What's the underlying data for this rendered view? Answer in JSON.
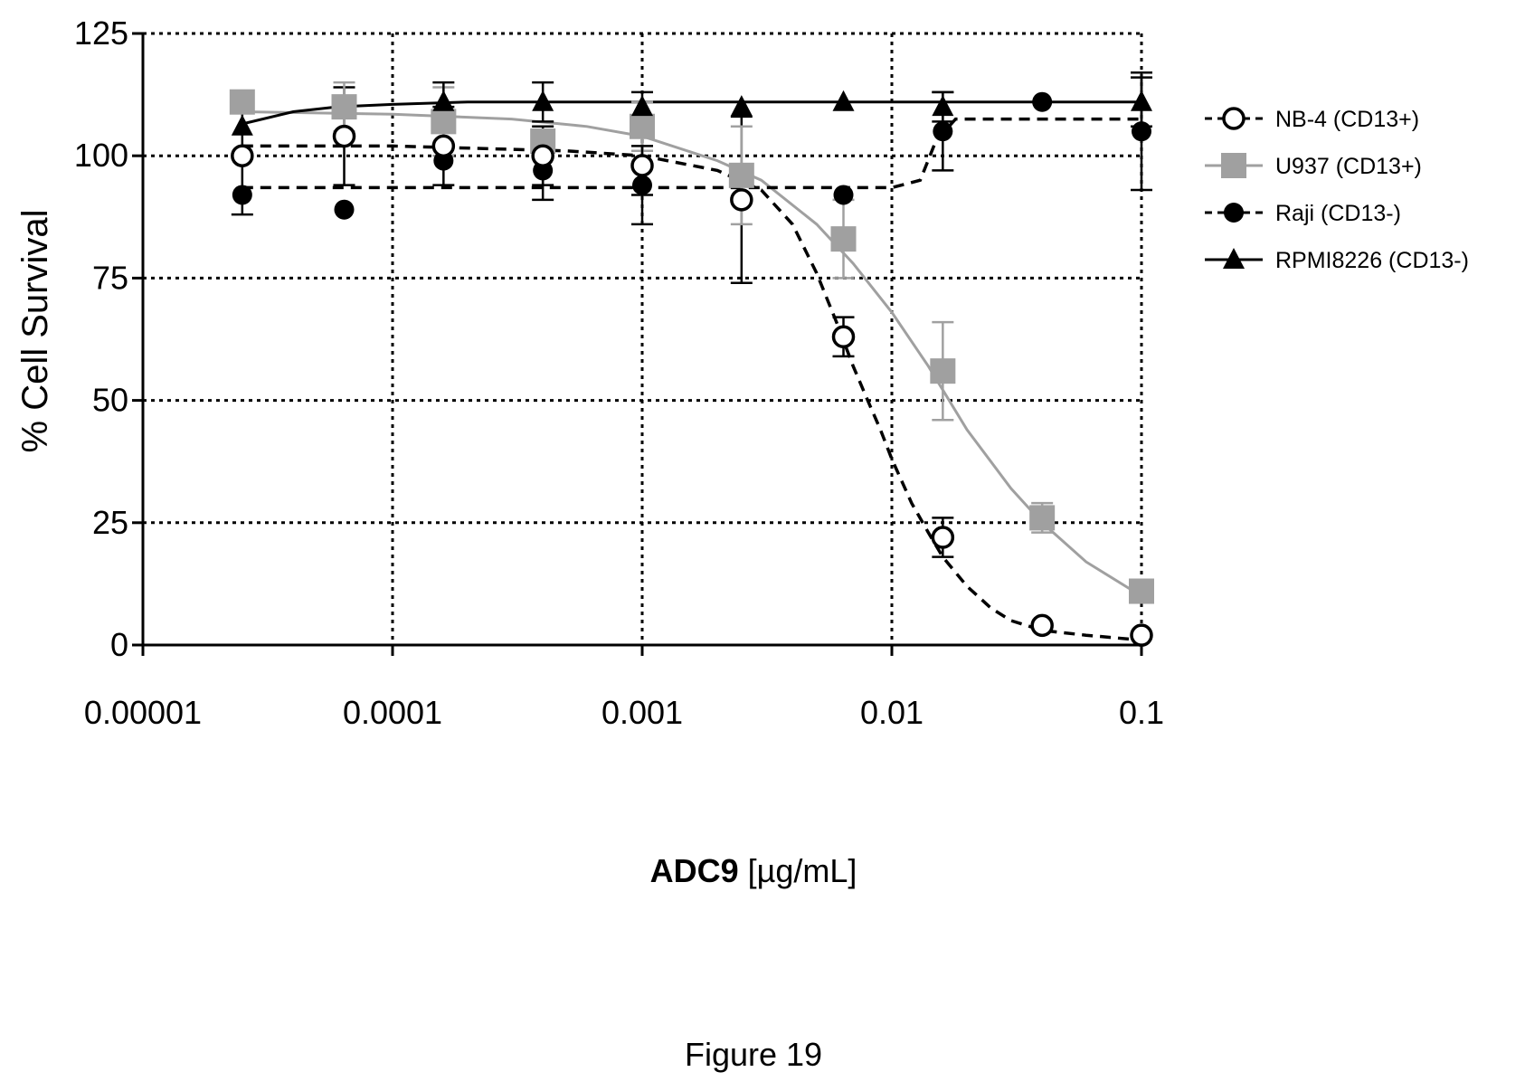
{
  "figure_caption": "Figure 19",
  "chart_data": {
    "type": "scatter",
    "x_scale": "log",
    "xlim": [
      1e-05,
      0.1
    ],
    "ylim": [
      0,
      125
    ],
    "x_ticks": [
      1e-05,
      0.0001,
      0.001,
      0.01,
      0.1
    ],
    "x_tick_labels": [
      "0.00001",
      "0.0001",
      "0.001",
      "0.01",
      "0.1"
    ],
    "y_ticks": [
      0,
      25,
      50,
      75,
      100,
      125
    ],
    "y_tick_labels": [
      "0",
      "25",
      "50",
      "75",
      "100",
      "125"
    ],
    "ylabel": "% Cell Survival",
    "xlabel_bold": "ADC9",
    "xlabel_unit": "[µg/mL]",
    "grid": true,
    "legend_position": "right",
    "series": [
      {
        "name": "NB-4 (CD13+)",
        "marker": "open-circle",
        "color": "#000000",
        "line": "dashed",
        "x": [
          2.5e-05,
          6.4e-05,
          0.00016,
          0.0004,
          0.001,
          0.0025,
          0.0064,
          0.016,
          0.04,
          0.1
        ],
        "y": [
          100,
          104,
          102,
          100,
          98,
          91,
          63,
          22,
          4,
          2
        ],
        "err": [
          12,
          10,
          8,
          6,
          6,
          17,
          4,
          4,
          0,
          0
        ],
        "fit_x": [
          2.5e-05,
          0.0001,
          0.0005,
          0.001,
          0.002,
          0.003,
          0.004,
          0.005,
          0.006,
          0.007,
          0.008,
          0.009,
          0.01,
          0.012,
          0.014,
          0.016,
          0.02,
          0.025,
          0.03,
          0.04,
          0.06,
          0.1
        ],
        "fit_y": [
          102,
          102,
          101,
          100,
          97,
          93,
          86,
          76,
          66,
          57,
          50,
          44,
          38,
          29,
          23,
          18,
          12,
          7.5,
          5,
          3,
          2,
          1
        ]
      },
      {
        "name": "U937 (CD13+)",
        "marker": "filled-square",
        "color": "#a0a0a0",
        "line": "solid",
        "x": [
          2.5e-05,
          6.4e-05,
          0.00016,
          0.0004,
          0.001,
          0.0025,
          0.0064,
          0.016,
          0.04,
          0.1
        ],
        "y": [
          111,
          110,
          107,
          103,
          106,
          96,
          83,
          56,
          26,
          11
        ],
        "err": [
          0,
          5,
          7,
          0,
          5,
          10,
          8,
          10,
          3,
          0
        ],
        "fit_x": [
          2.5e-05,
          0.0001,
          0.0003,
          0.0006,
          0.001,
          0.002,
          0.003,
          0.005,
          0.007,
          0.01,
          0.014,
          0.02,
          0.03,
          0.04,
          0.06,
          0.1
        ],
        "fit_y": [
          109,
          108.5,
          107.5,
          106,
          104,
          99,
          95,
          86,
          78,
          68,
          57,
          44,
          32,
          25,
          17,
          10
        ]
      },
      {
        "name": "Raji (CD13-)",
        "marker": "filled-circle",
        "color": "#000000",
        "line": "dashed",
        "x": [
          2.5e-05,
          6.4e-05,
          0.00016,
          0.0004,
          0.001,
          0.0025,
          0.0064,
          0.016,
          0.04,
          0.1
        ],
        "y": [
          92,
          89,
          99,
          97,
          94,
          91,
          92,
          105,
          111,
          105
        ],
        "err": [
          0,
          0,
          0,
          6,
          8,
          0,
          0,
          8,
          0,
          12
        ],
        "fit_x": [
          2.5e-05,
          0.001,
          0.01,
          0.013,
          0.015,
          0.018,
          0.04,
          0.1
        ],
        "fit_y": [
          93.5,
          93.5,
          93.5,
          95,
          103,
          107.5,
          107.5,
          107.5
        ]
      },
      {
        "name": "RPMI8226 (CD13-)",
        "marker": "filled-triangle",
        "color": "#000000",
        "line": "solid",
        "x": [
          2.5e-05,
          0.00016,
          0.0004,
          0.001,
          0.0025,
          0.0064,
          0.016,
          0.1
        ],
        "y": [
          106,
          111,
          111,
          110,
          110,
          111,
          110,
          111
        ],
        "err": [
          0,
          4,
          4,
          3,
          0,
          0,
          3,
          5
        ],
        "fit_x": [
          2.5e-05,
          4e-05,
          6e-05,
          0.0001,
          0.0002,
          0.001,
          0.1
        ],
        "fit_y": [
          106.5,
          109,
          110,
          110.5,
          111,
          111,
          111
        ]
      }
    ]
  }
}
